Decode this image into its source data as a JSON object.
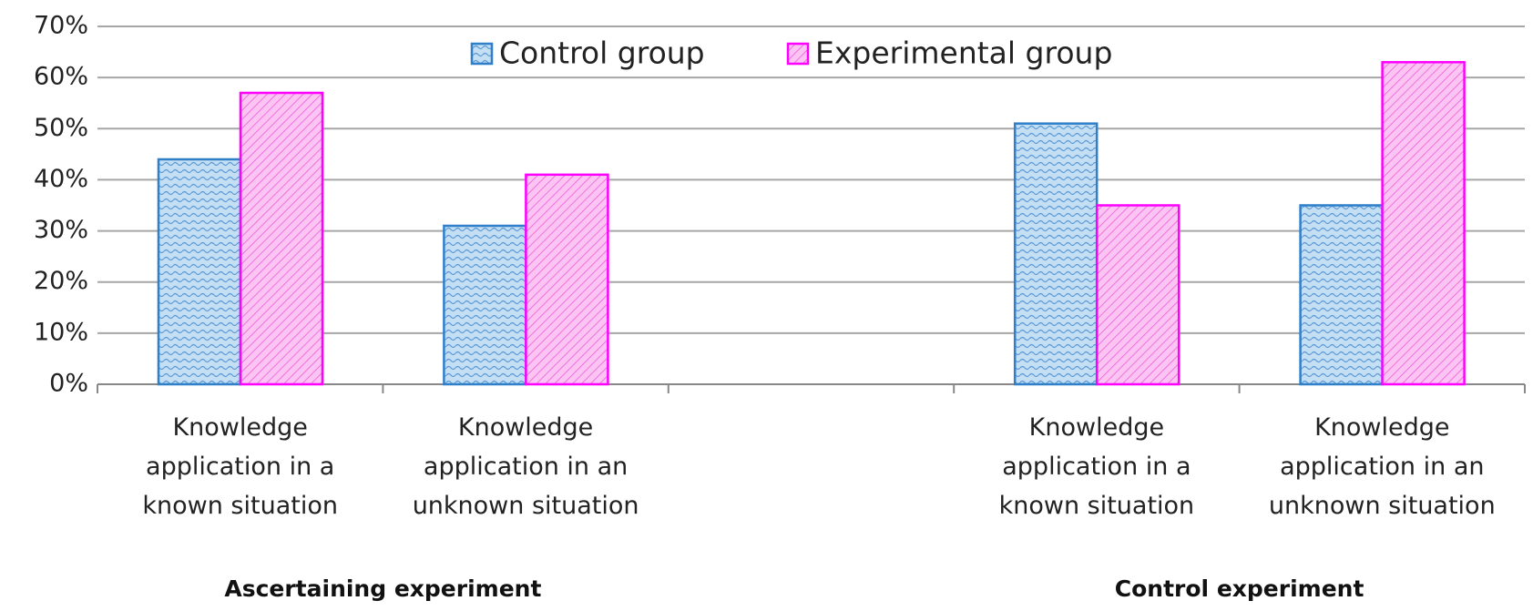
{
  "chart_data": {
    "type": "bar",
    "categories": [
      "Knowledge application in a known situation",
      "Knowledge application in an unknown situation",
      null,
      "Knowledge application in a known situation",
      "Knowledge application in an unknown situation"
    ],
    "group_labels": [
      "Ascertaining experiment",
      "Control experiment"
    ],
    "series": [
      {
        "name": "Control group",
        "color": "#2f7fc9",
        "values": [
          44,
          31,
          null,
          51,
          35
        ]
      },
      {
        "name": "Experimental group",
        "color": "#ff00ff",
        "values": [
          57,
          41,
          null,
          35,
          63
        ]
      }
    ],
    "ylim": [
      0,
      70
    ],
    "yticks": [
      {
        "value": 0,
        "label": "0%"
      },
      {
        "value": 10,
        "label": "10%"
      },
      {
        "value": 20,
        "label": "20%"
      },
      {
        "value": 30,
        "label": "30%"
      },
      {
        "value": 40,
        "label": "40%"
      },
      {
        "value": 50,
        "label": "50%"
      },
      {
        "value": 60,
        "label": "60%"
      },
      {
        "value": 70,
        "label": "70%"
      }
    ],
    "grid": true,
    "legend": "top"
  }
}
